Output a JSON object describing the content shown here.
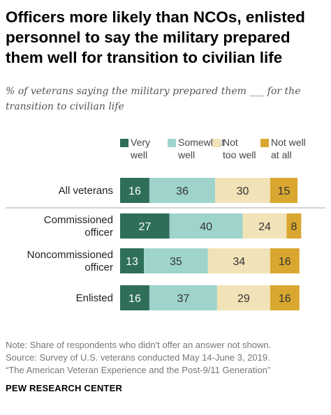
{
  "title": "Officers more likely than NCOs, enlisted personnel to say the military prepared them well for transition to civilian life",
  "subtitle": "% of veterans saying the military prepared them ___ for the transition to civilian life",
  "notes": [
    "Note: Share of respondents who didn't offer an answer not shown.",
    "Source: Survey of U.S. veterans conducted May 14-June 3, 2019.",
    "“The American Veteran Experience and the Post-9/11 Generation”"
  ],
  "brand": "PEW RESEARCH CENTER",
  "chart_data": {
    "type": "bar",
    "orientation": "horizontal",
    "stacked": true,
    "categories": [
      "All veterans",
      "Commissioned officer",
      "Noncommissioned officer",
      "Enlisted"
    ],
    "category_lines": [
      [
        "All veterans"
      ],
      [
        "Commissioned",
        "officer"
      ],
      [
        "Noncommissioned",
        "officer"
      ],
      [
        "Enlisted"
      ]
    ],
    "series": [
      {
        "name": "Very well",
        "legend_lines": [
          "Very",
          "well"
        ],
        "color": "#2e6e5a",
        "label_color": "#ffffff",
        "values": [
          16,
          27,
          13,
          16
        ]
      },
      {
        "name": "Somewhat well",
        "legend_lines": [
          "Somewhat",
          "well"
        ],
        "color": "#9fd4cc",
        "label_color": "#333333",
        "values": [
          36,
          40,
          35,
          37
        ]
      },
      {
        "name": "Not too well",
        "legend_lines": [
          "Not",
          "too well"
        ],
        "color": "#f2e2b8",
        "label_color": "#333333",
        "values": [
          30,
          24,
          34,
          29
        ]
      },
      {
        "name": "Not well at all",
        "legend_lines": [
          "Not well",
          "at all"
        ],
        "color": "#d9a730",
        "label_color": "#333333",
        "values": [
          15,
          8,
          16,
          16
        ]
      }
    ],
    "legend_position": "top",
    "grid": false
  }
}
